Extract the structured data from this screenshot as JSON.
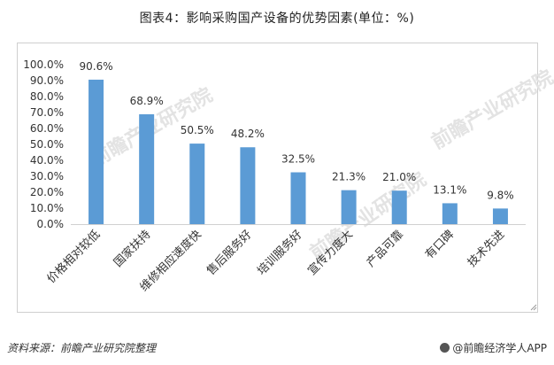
{
  "header": {
    "title": "图表4：影响采购国产设备的优势因素(单位：%)"
  },
  "footer": {
    "source": "资料来源：前瞻产业研究院整理",
    "brand": "@前瞻经济学人APP"
  },
  "watermark": {
    "text": "前瞻产业研究院"
  },
  "colors": {
    "bar": "#5b9bd5",
    "axis": "#d0d0d0",
    "text": "#333333"
  },
  "chart_data": {
    "type": "bar",
    "title": "图表4：影响采购国产设备的优势因素(单位：%)",
    "categories": [
      "价格相对较低",
      "国家扶持",
      "维修相应速度快",
      "售后服务好",
      "培训服务好",
      "宣传力度大",
      "产品可靠",
      "有口碑",
      "技术先进"
    ],
    "values": [
      90.6,
      68.9,
      50.5,
      48.2,
      32.5,
      21.3,
      21.0,
      13.1,
      9.8
    ],
    "value_labels": [
      "90.6%",
      "68.9%",
      "50.5%",
      "48.2%",
      "32.5%",
      "21.3%",
      "21.0%",
      "13.1%",
      "9.8%"
    ],
    "ylim": [
      0,
      100
    ],
    "yticks": [
      "0.0%",
      "10.0%",
      "20.0%",
      "30.0%",
      "40.0%",
      "50.0%",
      "60.0%",
      "70.0%",
      "80.0%",
      "90.0%",
      "100.0%"
    ],
    "xlabel": "",
    "ylabel": "",
    "grid": false,
    "legend": "none"
  }
}
